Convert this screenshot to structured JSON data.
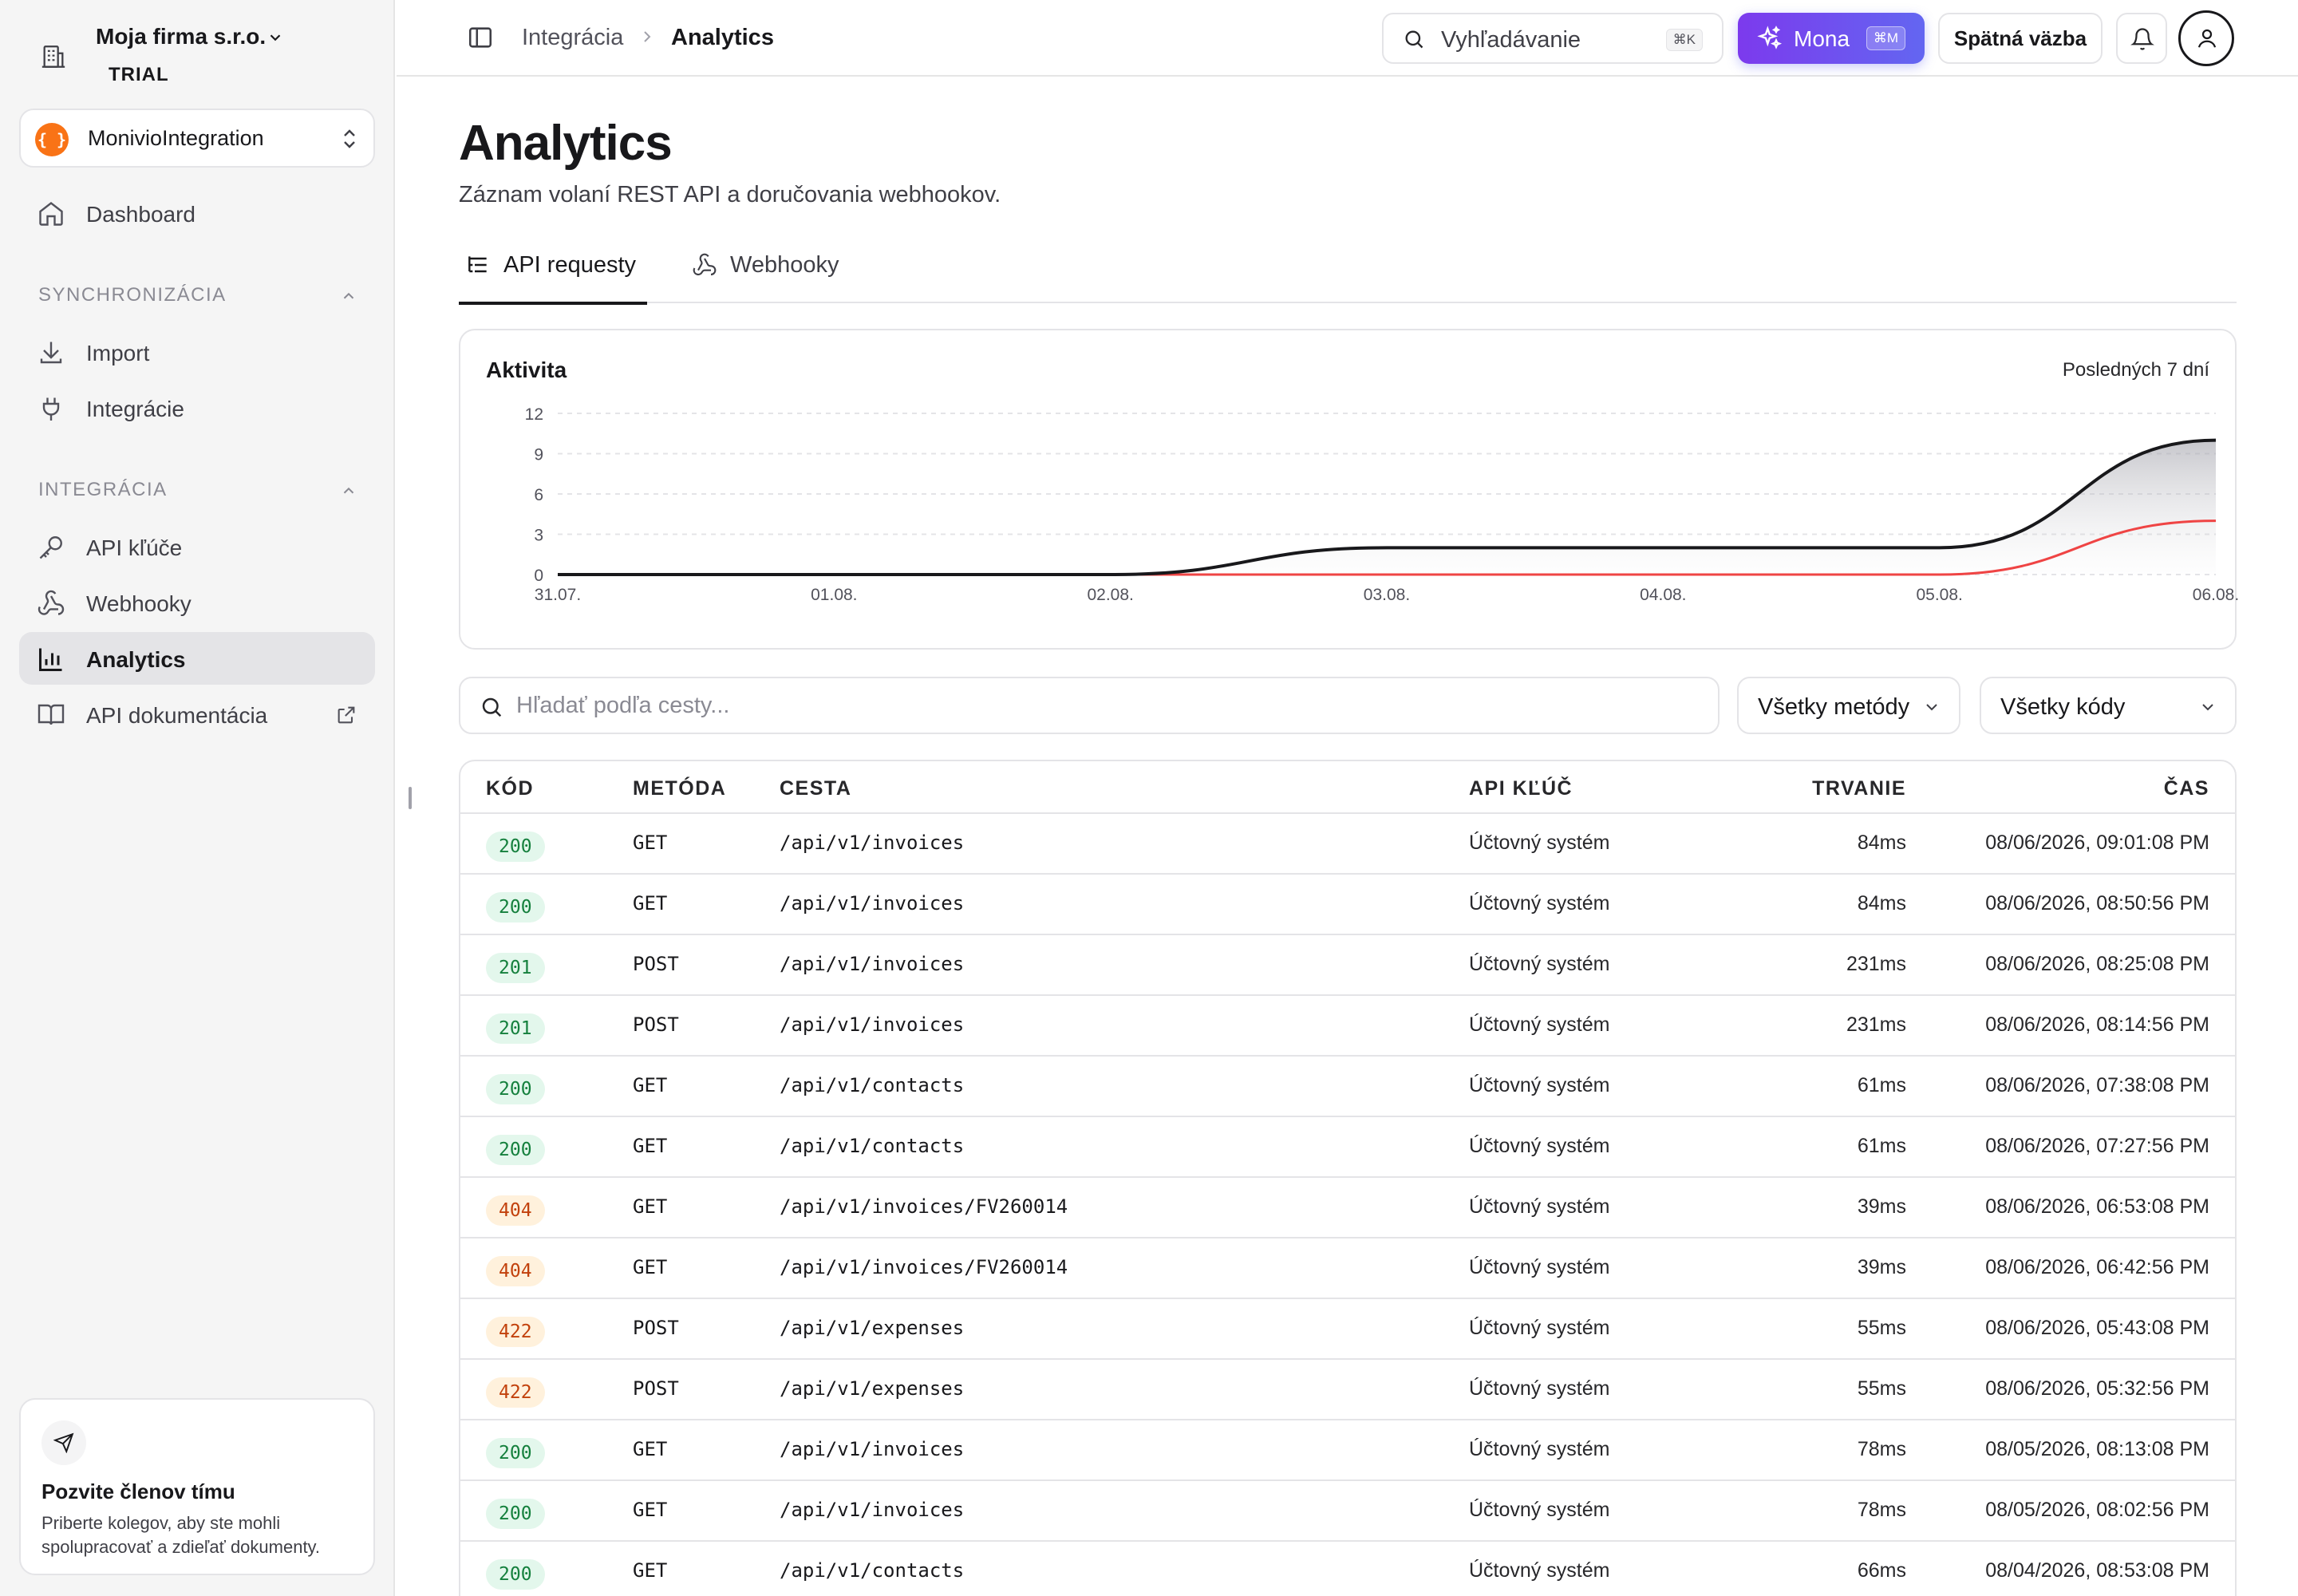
{
  "org": {
    "name": "Moja firma s.r.o.",
    "plan": "TRIAL"
  },
  "project": {
    "logo": "{ }",
    "name": "MonivioIntegration"
  },
  "sidebar": {
    "dashboard": "Dashboard",
    "section_sync": "SYNCHRONIZÁCIA",
    "import": "Import",
    "integrations": "Integrácie",
    "section_integration": "INTEGRÁCIA",
    "api_keys": "API kľúče",
    "webhooks": "Webhooky",
    "analytics": "Analytics",
    "api_docs": "API dokumentácia"
  },
  "invite": {
    "title": "Pozvite členov tímu",
    "text": "Priberte kolegov, aby ste mohli spolupracovať a zdieľať dokumenty."
  },
  "topbar": {
    "breadcrumb_parent": "Integrácia",
    "breadcrumb_current": "Analytics",
    "search_placeholder": "Vyhľadávanie",
    "search_shortcut": "⌘K",
    "mona_label": "Mona",
    "mona_shortcut": "⌘M",
    "feedback_label": "Spätná väzba"
  },
  "page": {
    "title": "Analytics",
    "subtitle": "Záznam volaní REST API a doručovania webhookov."
  },
  "tabs": [
    {
      "label": "API requesty",
      "active": true
    },
    {
      "label": "Webhooky",
      "active": false
    }
  ],
  "activity": {
    "title": "Aktivita",
    "range": "Posledných 7 dní"
  },
  "chart_data": {
    "type": "area",
    "x": [
      "31.07.",
      "01.08.",
      "02.08.",
      "03.08.",
      "04.08.",
      "05.08.",
      "06.08."
    ],
    "ylim": [
      0,
      12
    ],
    "yticks": [
      0,
      3,
      6,
      9,
      12
    ],
    "grid": true,
    "series": [
      {
        "values": [
          0,
          0,
          0,
          2,
          2,
          2,
          10
        ],
        "color": "#18181b"
      },
      {
        "values": [
          0,
          0,
          0,
          0,
          0,
          0,
          4
        ],
        "color": "#ef4444"
      }
    ]
  },
  "filters": {
    "path_placeholder": "Hľadať podľa cesty...",
    "method_label": "Všetky metódy",
    "code_label": "Všetky kódy"
  },
  "table": {
    "columns": [
      "KÓD",
      "METÓDA",
      "CESTA",
      "API KĽÚČ",
      "TRVANIE",
      "ČAS"
    ],
    "rows": [
      {
        "code": "200",
        "method": "GET",
        "path": "/api/v1/invoices",
        "key": "Účtovný systém",
        "duration": "84ms",
        "time": "08/06/2026, 09:01:08 PM"
      },
      {
        "code": "200",
        "method": "GET",
        "path": "/api/v1/invoices",
        "key": "Účtovný systém",
        "duration": "84ms",
        "time": "08/06/2026, 08:50:56 PM"
      },
      {
        "code": "201",
        "method": "POST",
        "path": "/api/v1/invoices",
        "key": "Účtovný systém",
        "duration": "231ms",
        "time": "08/06/2026, 08:25:08 PM"
      },
      {
        "code": "201",
        "method": "POST",
        "path": "/api/v1/invoices",
        "key": "Účtovný systém",
        "duration": "231ms",
        "time": "08/06/2026, 08:14:56 PM"
      },
      {
        "code": "200",
        "method": "GET",
        "path": "/api/v1/contacts",
        "key": "Účtovný systém",
        "duration": "61ms",
        "time": "08/06/2026, 07:38:08 PM"
      },
      {
        "code": "200",
        "method": "GET",
        "path": "/api/v1/contacts",
        "key": "Účtovný systém",
        "duration": "61ms",
        "time": "08/06/2026, 07:27:56 PM"
      },
      {
        "code": "404",
        "method": "GET",
        "path": "/api/v1/invoices/FV260014",
        "key": "Účtovný systém",
        "duration": "39ms",
        "time": "08/06/2026, 06:53:08 PM"
      },
      {
        "code": "404",
        "method": "GET",
        "path": "/api/v1/invoices/FV260014",
        "key": "Účtovný systém",
        "duration": "39ms",
        "time": "08/06/2026, 06:42:56 PM"
      },
      {
        "code": "422",
        "method": "POST",
        "path": "/api/v1/expenses",
        "key": "Účtovný systém",
        "duration": "55ms",
        "time": "08/06/2026, 05:43:08 PM"
      },
      {
        "code": "422",
        "method": "POST",
        "path": "/api/v1/expenses",
        "key": "Účtovný systém",
        "duration": "55ms",
        "time": "08/06/2026, 05:32:56 PM"
      },
      {
        "code": "200",
        "method": "GET",
        "path": "/api/v1/invoices",
        "key": "Účtovný systém",
        "duration": "78ms",
        "time": "08/05/2026, 08:13:08 PM"
      },
      {
        "code": "200",
        "method": "GET",
        "path": "/api/v1/invoices",
        "key": "Účtovný systém",
        "duration": "78ms",
        "time": "08/05/2026, 08:02:56 PM"
      },
      {
        "code": "200",
        "method": "GET",
        "path": "/api/v1/contacts",
        "key": "Účtovný systém",
        "duration": "66ms",
        "time": "08/04/2026, 08:53:08 PM"
      }
    ]
  }
}
